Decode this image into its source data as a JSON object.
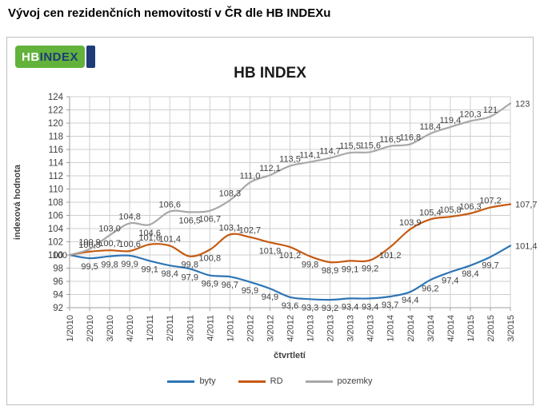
{
  "page": {
    "title": "Vývoj cen rezidenčních nemovitostí v ČR dle HB INDEXu"
  },
  "logo": {
    "hb": "HB",
    "index": "INDEX",
    "green_color": "#62b23c",
    "navy_color": "#1e3c78"
  },
  "chart_data": {
    "type": "line",
    "title": "HB INDEX",
    "xlabel": "čtvrtletí",
    "ylabel": "indexová hodnota",
    "ylim": [
      92,
      124
    ],
    "ytick_step": 2,
    "grid": true,
    "smoothed_lines": true,
    "legend_position": "bottom",
    "categories": [
      "1/2010",
      "2/2010",
      "3/2010",
      "4/2010",
      "1/2011",
      "2/2011",
      "3/2011",
      "4/2011",
      "1/2012",
      "2/2012",
      "3/2012",
      "4/2012",
      "1/2013",
      "2/2013",
      "3/2013",
      "4/2013",
      "1/2014",
      "2/2014",
      "3/2014",
      "4/2014",
      "1/2015",
      "2/2015",
      "3/2015"
    ],
    "series": [
      {
        "name": "byty",
        "color": "#2e75b6",
        "values": [
          100,
          99.5,
          99.8,
          99.9,
          99.1,
          98.4,
          97.9,
          96.9,
          96.7,
          95.9,
          94.9,
          93.6,
          93.3,
          93.2,
          93.4,
          93.4,
          93.7,
          94.4,
          96.2,
          97.4,
          98.4,
          99.7,
          101.4
        ],
        "labels": [
          "100",
          "99,5",
          "99,8",
          "99,9",
          "99,1",
          "98,4",
          "97,9",
          "96,9",
          "96,7",
          "95,9",
          "94,9",
          "93,6",
          "93,3",
          "93,2",
          "93,4",
          "93,4",
          "93,7",
          "94,4",
          "96,2",
          "97,4",
          "98,4",
          "99,7",
          "101,4"
        ]
      },
      {
        "name": "RD",
        "color": "#c55a11",
        "values": [
          100,
          100.5,
          100.7,
          100.6,
          101.6,
          101.4,
          99.8,
          100.8,
          103.1,
          102.7,
          101.9,
          101.2,
          99.8,
          98.9,
          99.1,
          99.2,
          101.2,
          103.9,
          105.4,
          105.8,
          106.3,
          107.2,
          107.7
        ],
        "labels": [
          "100",
          "100,5",
          "100,7",
          "100,6",
          "101,6",
          "101,4",
          "99,8",
          "100,8",
          "103,1",
          "102,7",
          "101,9",
          "101,2",
          "99,8",
          "98,9",
          "99,1",
          "99,2",
          "101,2",
          "103,9",
          "105,4",
          "105,8",
          "106,3",
          "107,2",
          "107,7"
        ]
      },
      {
        "name": "pozemky",
        "color": "#a8a8a8",
        "values": [
          100,
          100.9,
          103.0,
          104.8,
          104.6,
          106.6,
          106.5,
          106.7,
          108.3,
          111.0,
          112.1,
          113.5,
          114.1,
          114.7,
          115.5,
          115.6,
          116.5,
          116.8,
          118.4,
          119.4,
          120.3,
          121,
          123
        ],
        "labels": [
          "100",
          "100,9",
          "103,0",
          "104,8",
          "104,6",
          "106,6",
          "106,5",
          "106,7",
          "108,3",
          "111,0",
          "112,1",
          "113,5",
          "114,1",
          "114,7",
          "115,5",
          "115,6",
          "116,5",
          "116,8",
          "118,4",
          "119,4",
          "120,3",
          "121",
          "123"
        ]
      }
    ]
  }
}
